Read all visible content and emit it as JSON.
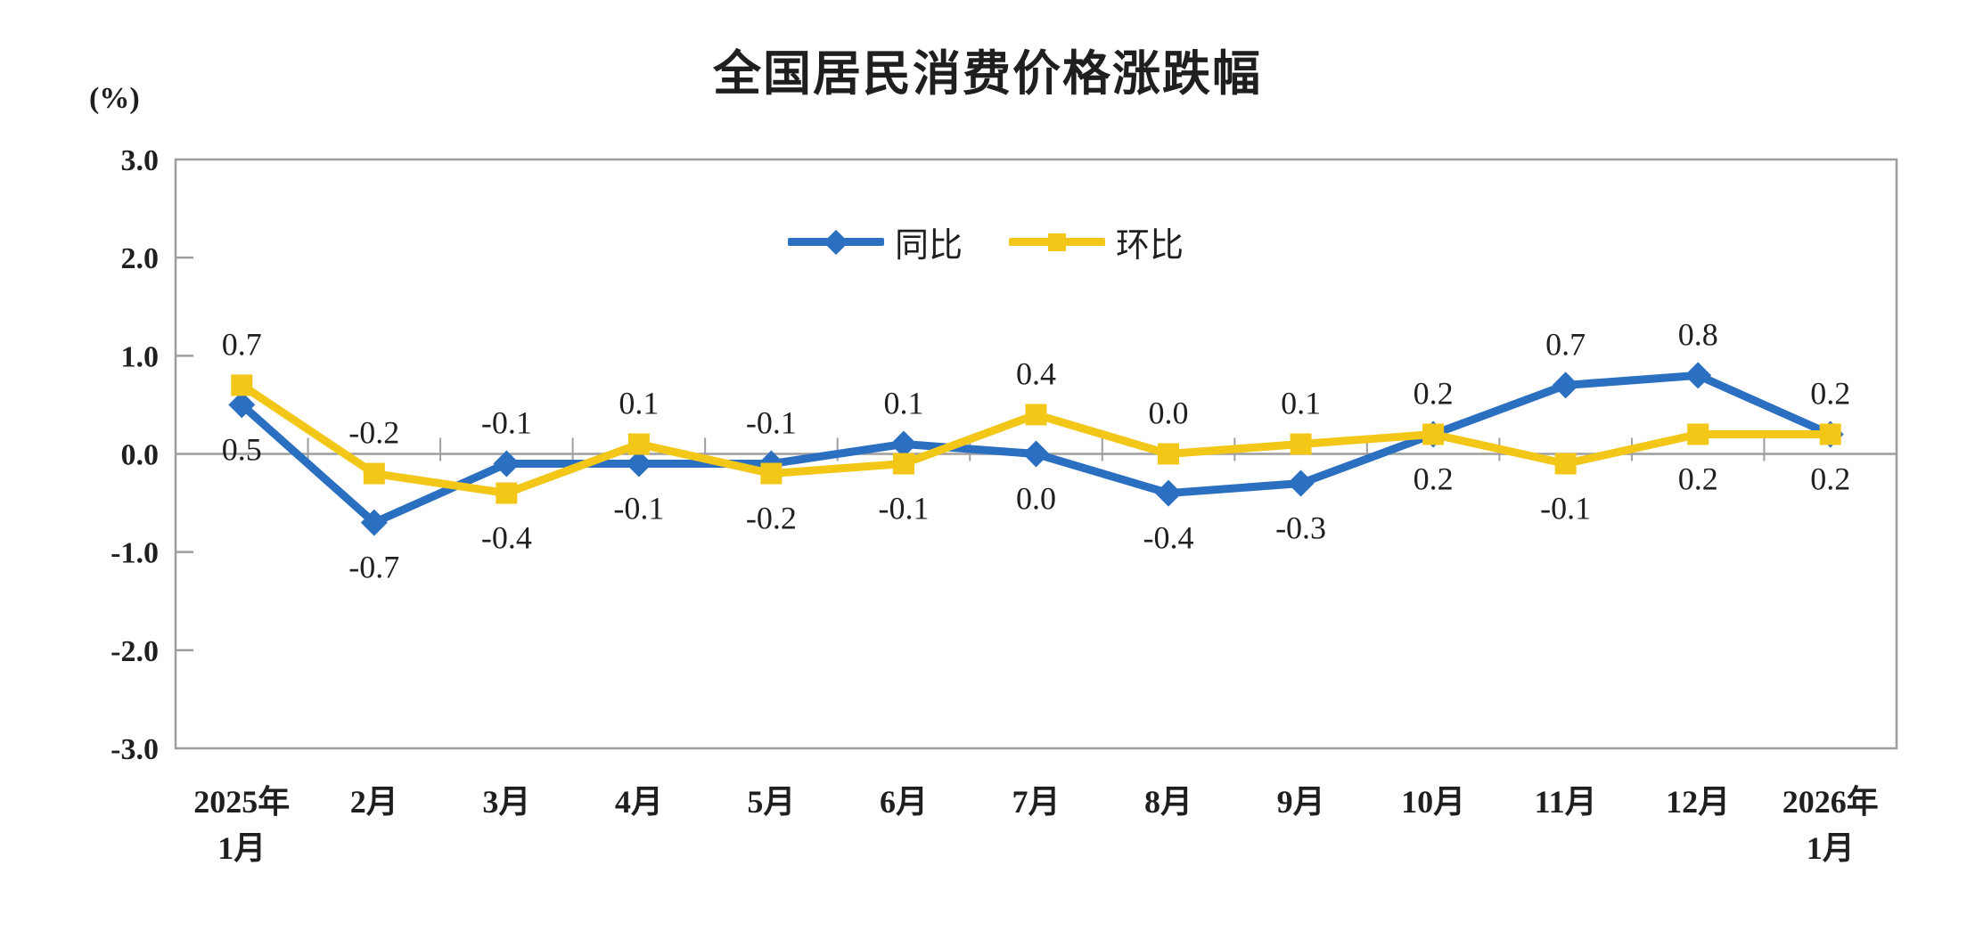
{
  "page": {
    "background": "#ffffff"
  },
  "chart_data": {
    "type": "line",
    "title": "全国居民消费价格涨跌幅",
    "unit_label": "(%)",
    "categories": [
      "2025年\n1月",
      "2月",
      "3月",
      "4月",
      "5月",
      "6月",
      "7月",
      "8月",
      "9月",
      "10月",
      "11月",
      "12月",
      "2026年\n1月"
    ],
    "ylim": [
      -3.0,
      3.0
    ],
    "yticks": [
      3.0,
      2.0,
      1.0,
      0.0,
      -1.0,
      -2.0,
      -3.0
    ],
    "grid": "zero-line-only",
    "legend_position": "top-center-inside",
    "axis_color": "#9E9E9E",
    "text_color": "#1F1F1F",
    "series": [
      {
        "id": "yoy",
        "name": "同比",
        "color": "#2B6FC1",
        "marker": "diamond",
        "values": [
          0.5,
          -0.7,
          -0.1,
          -0.1,
          -0.1,
          0.1,
          0.0,
          -0.4,
          -0.3,
          0.2,
          0.7,
          0.8,
          0.2
        ],
        "label_side": [
          "below",
          "below",
          "above",
          "below",
          "above",
          "above",
          "below",
          "below",
          "below",
          "above",
          "above",
          "above",
          "above"
        ]
      },
      {
        "id": "mom",
        "name": "环比",
        "color": "#F3C718",
        "marker": "square",
        "values": [
          0.7,
          -0.2,
          -0.4,
          0.1,
          -0.2,
          -0.1,
          0.4,
          0.0,
          0.1,
          0.2,
          -0.1,
          0.2,
          0.2
        ],
        "label_side": [
          "above",
          "above",
          "below",
          "above",
          "below",
          "below",
          "above",
          "above",
          "above",
          "below",
          "below",
          "below",
          "below"
        ]
      }
    ]
  }
}
